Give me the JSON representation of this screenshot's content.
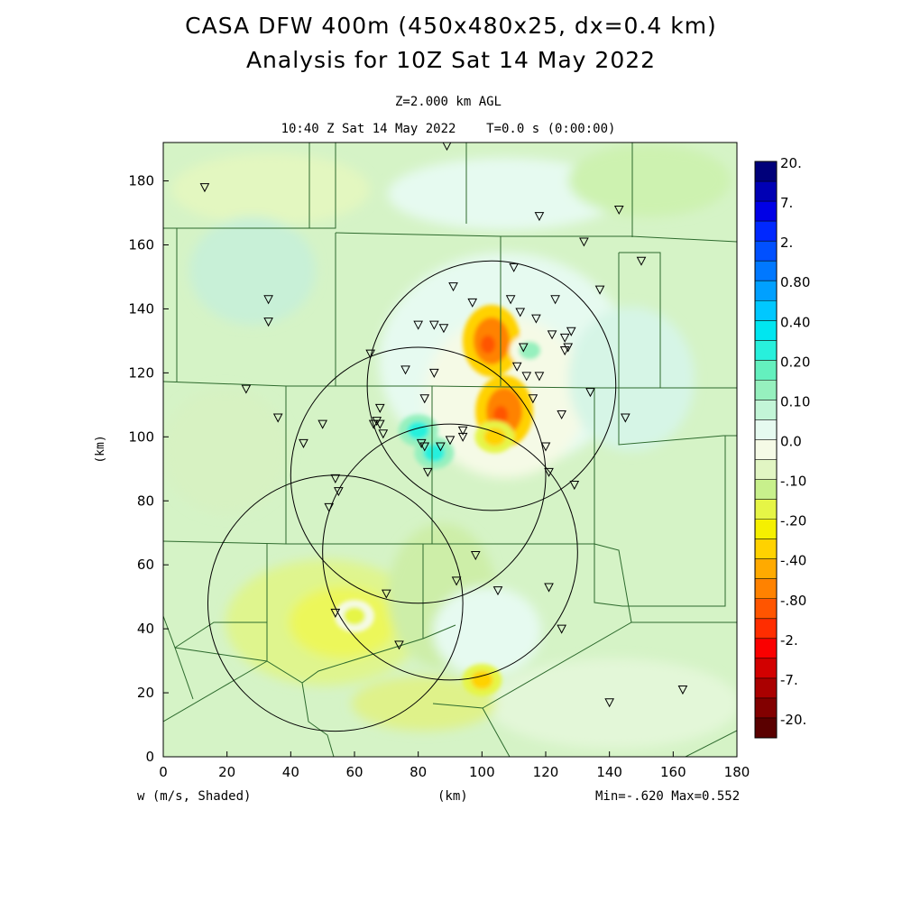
{
  "header": {
    "title_line1": "CASA DFW 400m (450x480x25, dx=0.4 km)",
    "title_line2": "Analysis for 10Z Sat 14 May 2022",
    "level": "Z=2.000 km AGL",
    "valid_time": "10:40 Z Sat 14 May 2022    T=0.0 s (0:00:00)"
  },
  "footer": {
    "variable": "w (m/s, Shaded)",
    "xunit": "(km)",
    "minmax": "Min=-.620 Max=0.552"
  },
  "colors": {
    "background_field": "#dcf5d0",
    "county_lines": "#2d6a2d",
    "radar_rings": "#000000"
  },
  "chart_data": {
    "type": "heatmap",
    "title": "CASA DFW 400m (450x480x25, dx=0.4 km)",
    "xlabel": "(km)",
    "ylabel": "(km)",
    "xlim": [
      0,
      180
    ],
    "ylim": [
      0,
      192
    ],
    "x_ticks": [
      0,
      20,
      40,
      60,
      80,
      100,
      120,
      140,
      160,
      180
    ],
    "y_ticks": [
      0,
      20,
      40,
      60,
      80,
      100,
      120,
      140,
      160,
      180
    ],
    "legend_placement": "right",
    "colorbar": [
      {
        "label": "20.",
        "color": "#00007a"
      },
      {
        "label": "",
        "color": "#0000b4"
      },
      {
        "label": "7.",
        "color": "#0000e6"
      },
      {
        "label": "",
        "color": "#0028ff"
      },
      {
        "label": "2.",
        "color": "#0050ff"
      },
      {
        "label": "",
        "color": "#0078ff"
      },
      {
        "label": "0.80",
        "color": "#00a0ff"
      },
      {
        "label": "",
        "color": "#00c8ff"
      },
      {
        "label": "0.40",
        "color": "#00e6f0"
      },
      {
        "label": "",
        "color": "#28f0dc"
      },
      {
        "label": "0.20",
        "color": "#64f0be"
      },
      {
        "label": "",
        "color": "#96f0be"
      },
      {
        "label": "0.10",
        "color": "#c3f5d7"
      },
      {
        "label": "",
        "color": "#e6faf0"
      },
      {
        "label": "0.0",
        "color": "#f5fae6"
      },
      {
        "label": "",
        "color": "#e1f5c3"
      },
      {
        "label": "-.10",
        "color": "#c8f08c"
      },
      {
        "label": "",
        "color": "#e6f546"
      },
      {
        "label": "-.20",
        "color": "#f5f000"
      },
      {
        "label": "",
        "color": "#ffd200"
      },
      {
        "label": "-.40",
        "color": "#ffaa00"
      },
      {
        "label": "",
        "color": "#ff8200"
      },
      {
        "label": "-.80",
        "color": "#ff5500"
      },
      {
        "label": "",
        "color": "#ff2d00"
      },
      {
        "label": "-2.",
        "color": "#fa0000"
      },
      {
        "label": "",
        "color": "#d20000"
      },
      {
        "label": "-7.",
        "color": "#aa0000"
      },
      {
        "label": "",
        "color": "#820000"
      },
      {
        "label": "-20.",
        "color": "#5a0000"
      }
    ],
    "radar_rings": [
      {
        "cx": 103,
        "cy": 116,
        "r": 39
      },
      {
        "cx": 80,
        "cy": 88,
        "r": 40
      },
      {
        "cx": 90,
        "cy": 64,
        "r": 40
      },
      {
        "cx": 54,
        "cy": 48,
        "r": 40
      }
    ],
    "stations": [
      [
        13,
        178
      ],
      [
        33,
        143
      ],
      [
        33,
        136
      ],
      [
        26,
        115
      ],
      [
        36,
        106
      ],
      [
        44,
        98
      ],
      [
        50,
        104
      ],
      [
        52,
        78
      ],
      [
        54,
        87
      ],
      [
        55,
        83
      ],
      [
        65,
        126
      ],
      [
        66,
        104
      ],
      [
        67,
        105
      ],
      [
        68,
        104
      ],
      [
        68,
        109
      ],
      [
        69,
        101
      ],
      [
        70,
        51
      ],
      [
        74,
        35
      ],
      [
        54,
        45
      ],
      [
        76,
        121
      ],
      [
        80,
        135
      ],
      [
        81,
        98
      ],
      [
        82,
        97
      ],
      [
        82,
        112
      ],
      [
        83,
        89
      ],
      [
        85,
        135
      ],
      [
        85,
        120
      ],
      [
        87,
        97
      ],
      [
        88,
        134
      ],
      [
        89,
        191
      ],
      [
        90,
        99
      ],
      [
        91,
        147
      ],
      [
        92,
        55
      ],
      [
        94,
        102
      ],
      [
        94,
        100
      ],
      [
        97,
        142
      ],
      [
        98,
        63
      ],
      [
        105,
        52
      ],
      [
        109,
        143
      ],
      [
        110,
        153
      ],
      [
        111,
        122
      ],
      [
        112,
        139
      ],
      [
        113,
        128
      ],
      [
        114,
        119
      ],
      [
        116,
        112
      ],
      [
        117,
        137
      ],
      [
        118,
        169
      ],
      [
        118,
        119
      ],
      [
        120,
        97
      ],
      [
        121,
        89
      ],
      [
        121,
        53
      ],
      [
        122,
        132
      ],
      [
        123,
        143
      ],
      [
        125,
        107
      ],
      [
        125,
        40
      ],
      [
        126,
        127
      ],
      [
        126,
        131
      ],
      [
        127,
        128
      ],
      [
        128,
        133
      ],
      [
        129,
        85
      ],
      [
        132,
        161
      ],
      [
        134,
        114
      ],
      [
        137,
        146
      ],
      [
        140,
        17
      ],
      [
        143,
        171
      ],
      [
        145,
        106
      ],
      [
        150,
        155
      ],
      [
        163,
        21
      ]
    ],
    "field_features": [
      {
        "kind": "downdraft",
        "x": 103,
        "y": 130,
        "value": -0.4
      },
      {
        "kind": "downdraft",
        "x": 107,
        "y": 108,
        "value": -0.4
      },
      {
        "kind": "downdraft",
        "x": 104,
        "y": 100,
        "value": -0.2
      },
      {
        "kind": "downdraft",
        "x": 60,
        "y": 44,
        "value": -0.1
      },
      {
        "kind": "downdraft",
        "x": 100,
        "y": 24,
        "value": -0.2
      },
      {
        "kind": "updraft",
        "x": 80,
        "y": 102,
        "value": 0.2
      },
      {
        "kind": "updraft",
        "x": 85,
        "y": 95,
        "value": 0.2
      },
      {
        "kind": "updraft",
        "x": 115,
        "y": 127,
        "value": 0.1
      }
    ]
  }
}
